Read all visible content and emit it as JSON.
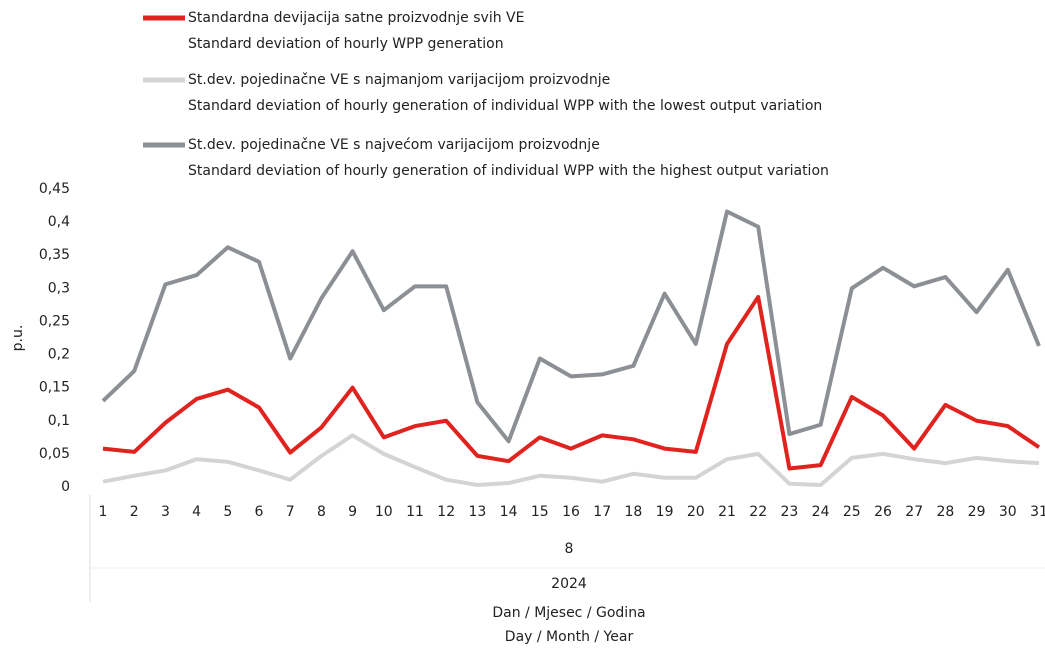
{
  "chart_data": {
    "type": "line",
    "categories": [
      "1",
      "2",
      "3",
      "4",
      "5",
      "6",
      "7",
      "8",
      "9",
      "10",
      "11",
      "12",
      "13",
      "14",
      "15",
      "16",
      "17",
      "18",
      "19",
      "20",
      "21",
      "22",
      "23",
      "24",
      "25",
      "26",
      "27",
      "28",
      "29",
      "30",
      "31"
    ],
    "month": "8",
    "year": "2024",
    "xlabel": [
      "Dan / Mjesec / Godina",
      "Day / Month / Year"
    ],
    "ylabel": "p.u.",
    "ylim": [
      0,
      0.45
    ],
    "yticks": [
      0,
      {
        "value": 0.05,
        "label": "0,05"
      },
      {
        "value": 0.1,
        "label": "0,1"
      },
      {
        "value": 0.15,
        "label": "0,15"
      },
      {
        "value": 0.2,
        "label": "0,2"
      },
      {
        "value": 0.25,
        "label": "0,25"
      },
      {
        "value": 0.3,
        "label": "0,3"
      },
      {
        "value": 0.35,
        "label": "0,35"
      },
      {
        "value": 0.4,
        "label": "0,4"
      },
      {
        "value": 0.45,
        "label": "0,45"
      }
    ],
    "grid": false,
    "series": [
      {
        "name": "Standardna devijacija satne proizvodnje svih VE",
        "name_en": "Standard deviation of hourly WPP generation",
        "color": "#e0231e",
        "values": [
          0.058,
          0.053,
          0.097,
          0.133,
          0.147,
          0.12,
          0.052,
          0.09,
          0.15,
          0.075,
          0.092,
          0.1,
          0.047,
          0.039,
          0.075,
          0.058,
          0.078,
          0.072,
          0.058,
          0.053,
          0.216,
          0.287,
          0.028,
          0.033,
          0.136,
          0.108,
          0.058,
          0.124,
          0.1,
          0.092,
          0.06
        ]
      },
      {
        "name": "St.dev. pojedinačne VE s najmanjom varijacijom proizvodnje",
        "name_en": "Standard deviation of hourly generation of individual WPP with the lowest output variation",
        "color": "#d4d4d4",
        "values": [
          0.008,
          0.017,
          0.025,
          0.042,
          0.038,
          0.025,
          0.011,
          0.047,
          0.078,
          0.05,
          0.03,
          0.011,
          0.003,
          0.006,
          0.017,
          0.014,
          0.008,
          0.02,
          0.014,
          0.014,
          0.042,
          0.05,
          0.005,
          0.003,
          0.044,
          0.05,
          0.042,
          0.036,
          0.044,
          0.039,
          0.036
        ]
      },
      {
        "name": "St.dev. pojedinačne VE s najvećom varijacijom proizvodnje",
        "name_en": "Standard deviation of hourly generation of individual WPP with the highest output variation",
        "color": "#8c8f93",
        "values": [
          0.13,
          0.175,
          0.306,
          0.32,
          0.362,
          0.34,
          0.194,
          0.285,
          0.356,
          0.267,
          0.303,
          0.303,
          0.128,
          0.069,
          0.194,
          0.167,
          0.17,
          0.183,
          0.292,
          0.216,
          0.416,
          0.393,
          0.08,
          0.094,
          0.3,
          0.331,
          0.303,
          0.317,
          0.264,
          0.328,
          0.213
        ]
      }
    ]
  }
}
